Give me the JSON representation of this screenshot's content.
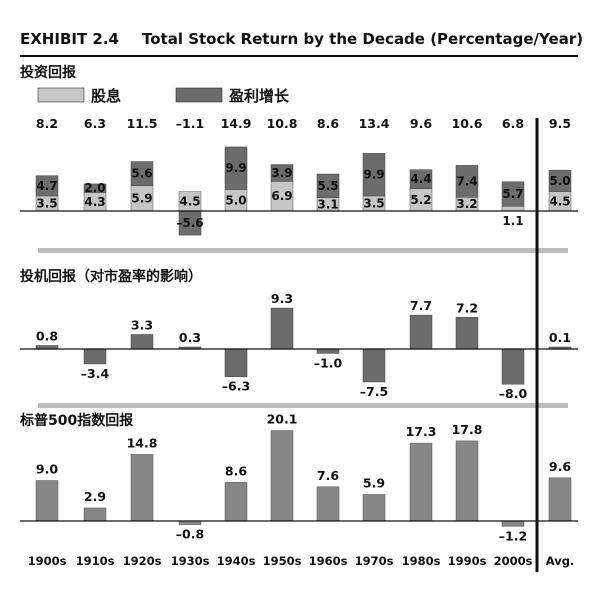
{
  "exhibit": {
    "number": "EXHIBIT 2.4",
    "title": "Total Stock Return by the Decade (Percentage/Year)"
  },
  "legend": {
    "dividend": "股息",
    "earnings": "盈利增长"
  },
  "colors": {
    "dividend": "#c6c6c6",
    "earnings": "#6c6c6c",
    "grid": "#bdbdbd",
    "axis": "#111111",
    "sp500": "#878787"
  },
  "chart_data": [
    {
      "type": "bar",
      "stacked": true,
      "title": "投资回报",
      "categories": [
        "1900s",
        "1910s",
        "1920s",
        "1930s",
        "1940s",
        "1950s",
        "1960s",
        "1970s",
        "1980s",
        "1990s",
        "2000s",
        "Avg."
      ],
      "totals": [
        "8.2",
        "6.3",
        "11.5",
        "–1.1",
        "14.9",
        "10.8",
        "8.6",
        "13.4",
        "9.6",
        "10.6",
        "6.8",
        "9.5"
      ],
      "series": [
        {
          "name": "股息",
          "values": [
            3.5,
            4.3,
            5.9,
            4.5,
            5.0,
            6.9,
            3.1,
            3.5,
            5.2,
            3.2,
            1.1,
            4.5
          ]
        },
        {
          "name": "盈利增长",
          "values": [
            4.7,
            2.0,
            5.6,
            -5.6,
            9.9,
            3.9,
            5.5,
            9.9,
            4.4,
            7.4,
            5.7,
            5.0
          ]
        }
      ]
    },
    {
      "type": "bar",
      "title": "投机回报（对市盈率的影响）",
      "categories": [
        "1900s",
        "1910s",
        "1920s",
        "1930s",
        "1940s",
        "1950s",
        "1960s",
        "1970s",
        "1980s",
        "1990s",
        "2000s",
        "Avg."
      ],
      "values": [
        0.8,
        -3.4,
        3.3,
        0.3,
        -6.3,
        9.3,
        -1.0,
        -7.5,
        7.7,
        7.2,
        -8.0,
        0.1
      ],
      "labels": [
        "0.8",
        "–3.4",
        "3.3",
        "0.3",
        "–6.3",
        "9.3",
        "–1.0",
        "–7.5",
        "7.7",
        "7.2",
        "–8.0",
        "0.1"
      ]
    },
    {
      "type": "bar",
      "title": "标普500指数回报",
      "categories": [
        "1900s",
        "1910s",
        "1920s",
        "1930s",
        "1940s",
        "1950s",
        "1960s",
        "1970s",
        "1980s",
        "1990s",
        "2000s",
        "Avg."
      ],
      "values": [
        9.0,
        2.9,
        14.8,
        -0.8,
        8.6,
        20.1,
        7.6,
        5.9,
        17.3,
        17.8,
        -1.2,
        9.6
      ],
      "labels": [
        "9.0",
        "2.9",
        "14.8",
        "–0.8",
        "8.6",
        "20.1",
        "7.6",
        "5.9",
        "17.3",
        "17.8",
        "–1.2",
        "9.6"
      ]
    }
  ]
}
